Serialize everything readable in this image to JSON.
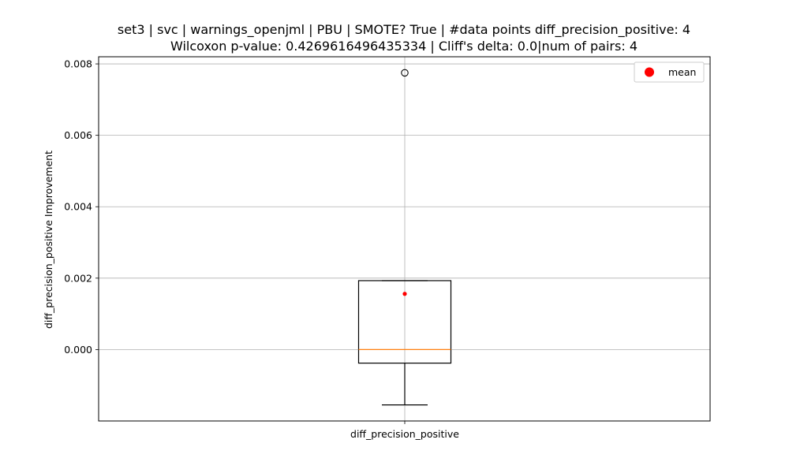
{
  "chart_data": {
    "type": "box",
    "title_lines": [
      "set3 | svc | warnings_openjml | PBU | SMOTE? True | #data points diff_precision_positive: 4",
      "Wilcoxon p-value: 0.4269616496435334 | Cliff's delta: 0.0|num of pairs: 4"
    ],
    "xlabel": "",
    "ylabel": "diff_precision_positive Improvement",
    "categories": [
      "diff_precision_positive"
    ],
    "ylim": [
      -0.002,
      0.0082
    ],
    "yticks": [
      0.0,
      0.002,
      0.004,
      0.006,
      0.008
    ],
    "ytick_labels": [
      "0.000",
      "0.002",
      "0.004",
      "0.006",
      "0.008"
    ],
    "grid": true,
    "legend": {
      "position": "top-right",
      "entries": [
        {
          "label": "mean",
          "color": "#ff0000",
          "marker": "circle"
        }
      ]
    },
    "box": {
      "whisker_low": -0.00155,
      "q1": -0.00038,
      "median": 0.0,
      "q3": 0.00193,
      "whisker_high": 0.00193,
      "mean": 0.00156,
      "outliers": [
        0.00775
      ]
    },
    "colors": {
      "box": "#000000",
      "median": "#ff7f0e",
      "mean": "#ff0000",
      "grid": "#b0b0b0"
    }
  }
}
